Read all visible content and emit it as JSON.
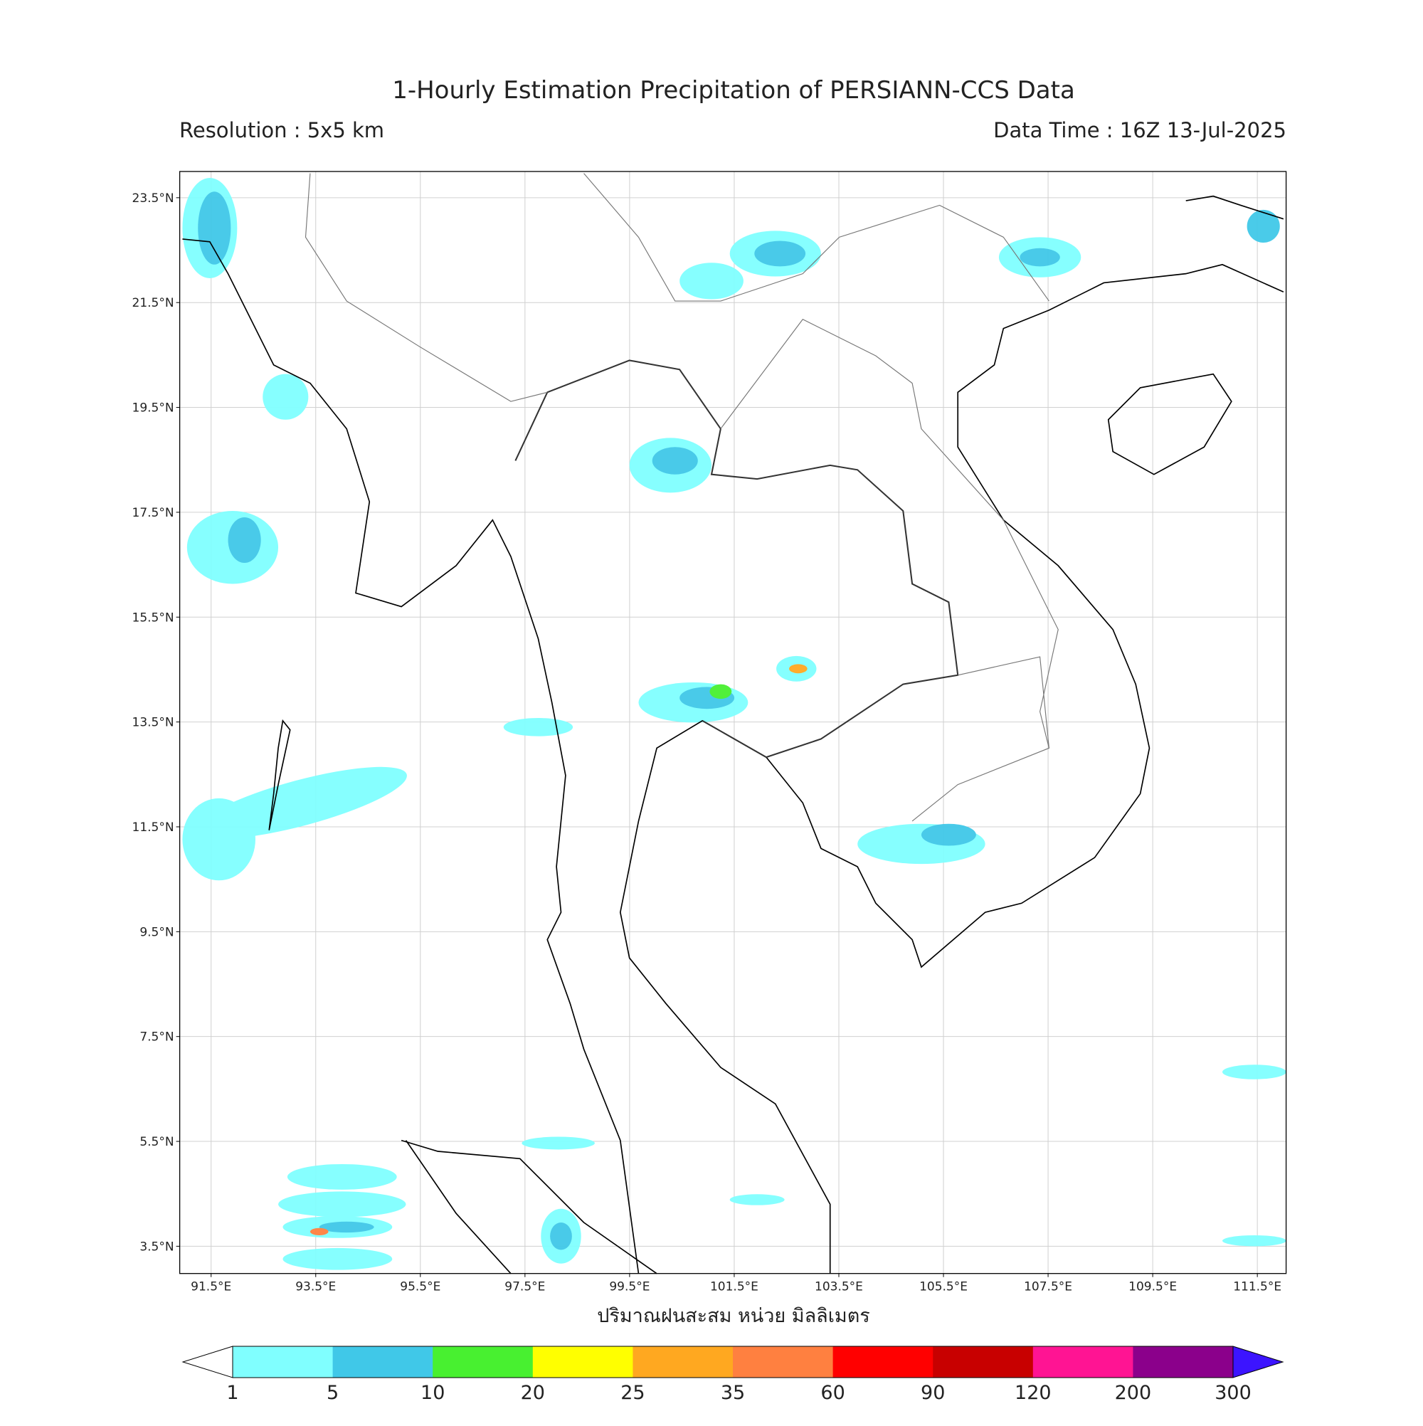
{
  "header": {
    "title": "1-Hourly Estimation Precipitation of PERSIANN-CCS Data",
    "resolution": "Resolution : 5x5 km",
    "data_time": "Data Time : 16Z 13-Jul-2025"
  },
  "map": {
    "lon_range": [
      90.9,
      112.05
    ],
    "lat_range": [
      2.98,
      24.0
    ],
    "lat_ticks": [
      {
        "value": 23.5,
        "label": "23.5°N"
      },
      {
        "value": 21.5,
        "label": "21.5°N"
      },
      {
        "value": 19.5,
        "label": "19.5°N"
      },
      {
        "value": 17.5,
        "label": "17.5°N"
      },
      {
        "value": 15.5,
        "label": "15.5°N"
      },
      {
        "value": 13.5,
        "label": "13.5°N"
      },
      {
        "value": 11.5,
        "label": "11.5°N"
      },
      {
        "value": 9.5,
        "label": "9.5°N"
      },
      {
        "value": 7.5,
        "label": "7.5°N"
      },
      {
        "value": 5.5,
        "label": "5.5°N"
      },
      {
        "value": 3.5,
        "label": "3.5°N"
      }
    ],
    "lon_ticks": [
      {
        "value": 91.5,
        "label": "91.5°E"
      },
      {
        "value": 93.5,
        "label": "93.5°E"
      },
      {
        "value": 95.5,
        "label": "95.5°E"
      },
      {
        "value": 97.5,
        "label": "97.5°E"
      },
      {
        "value": 99.5,
        "label": "99.5°E"
      },
      {
        "value": 101.5,
        "label": "101.5°E"
      },
      {
        "value": 103.5,
        "label": "103.5°E"
      },
      {
        "value": 105.5,
        "label": "105.5°E"
      },
      {
        "value": 107.5,
        "label": "107.5°E"
      },
      {
        "value": 109.5,
        "label": "109.5°E"
      },
      {
        "value": 111.5,
        "label": "111.5°E"
      }
    ],
    "x_label": "ปริมาณฝนสะสม หน่วย มิลลิเมตร"
  },
  "colorbar": {
    "levels": [
      1,
      5,
      10,
      20,
      25,
      35,
      60,
      90,
      120,
      200,
      300
    ],
    "colors": [
      "#80ffff",
      "#40c8e8",
      "#48f030",
      "#ffff00",
      "#ffa820",
      "#ff8040",
      "#ff0000",
      "#c80000",
      "#ff1493",
      "#8b008b"
    ],
    "under_color": "#ffffff",
    "over_color": "#3c14ff"
  }
}
